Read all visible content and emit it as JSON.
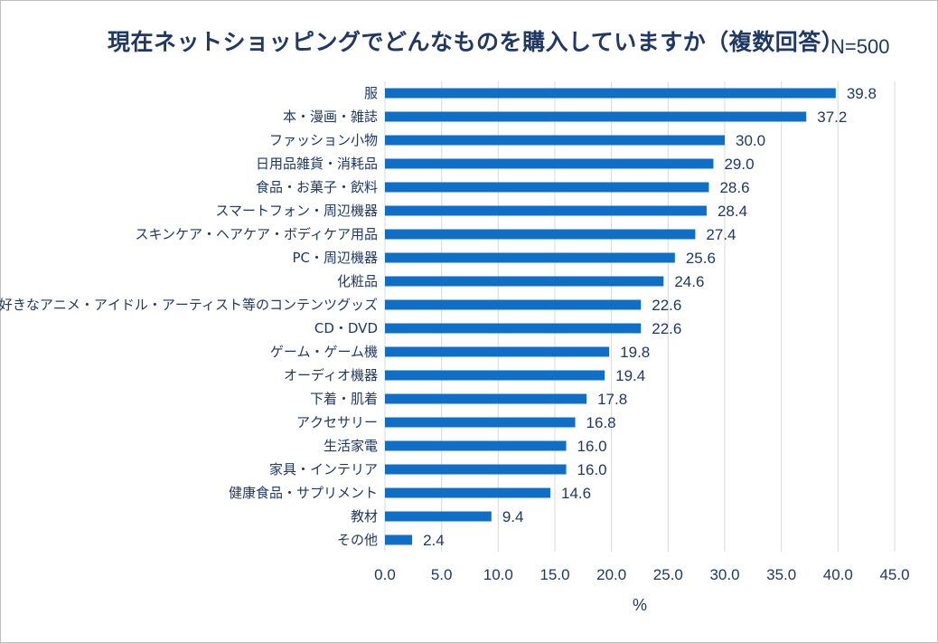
{
  "chart_data": {
    "type": "bar",
    "orientation": "horizontal",
    "title": "現在ネットショッピングでどんなものを購入していますか（複数回答）",
    "sample_size": "N=500",
    "xlabel": "%",
    "ylabel": "",
    "xlim": [
      0,
      45
    ],
    "xticks": [
      "0.0",
      "5.0",
      "10.0",
      "15.0",
      "20.0",
      "25.0",
      "30.0",
      "35.0",
      "40.0",
      "45.0"
    ],
    "grid": true,
    "bar_color": "#0f6fc6",
    "categories": [
      "服",
      "本・漫画・雑誌",
      "ファッション小物",
      "日用品雑貨・消耗品",
      "食品・お菓子・飲料",
      "スマートフォン・周辺機器",
      "スキンケア・ヘアケア・ボディケア用品",
      "PC・周辺機器",
      "化粧品",
      "好きなアニメ・アイドル・アーティスト等のコンテンツグッズ",
      "CD・DVD",
      "ゲーム・ゲーム機",
      "オーディオ機器",
      "下着・肌着",
      "アクセサリー",
      "生活家電",
      "家具・インテリア",
      "健康食品・サプリメント",
      "教材",
      "その他"
    ],
    "values": [
      39.8,
      37.2,
      30.0,
      29.0,
      28.6,
      28.4,
      27.4,
      25.6,
      24.6,
      22.6,
      22.6,
      19.8,
      19.4,
      17.8,
      16.8,
      16.0,
      16.0,
      14.6,
      9.4,
      2.4
    ],
    "value_labels": [
      "39.8",
      "37.2",
      "30.0",
      "29.0",
      "28.6",
      "28.4",
      "27.4",
      "25.6",
      "24.6",
      "22.6",
      "22.6",
      "19.8",
      "19.4",
      "17.8",
      "16.8",
      "16.0",
      "16.0",
      "14.6",
      "9.4",
      "2.4"
    ]
  }
}
